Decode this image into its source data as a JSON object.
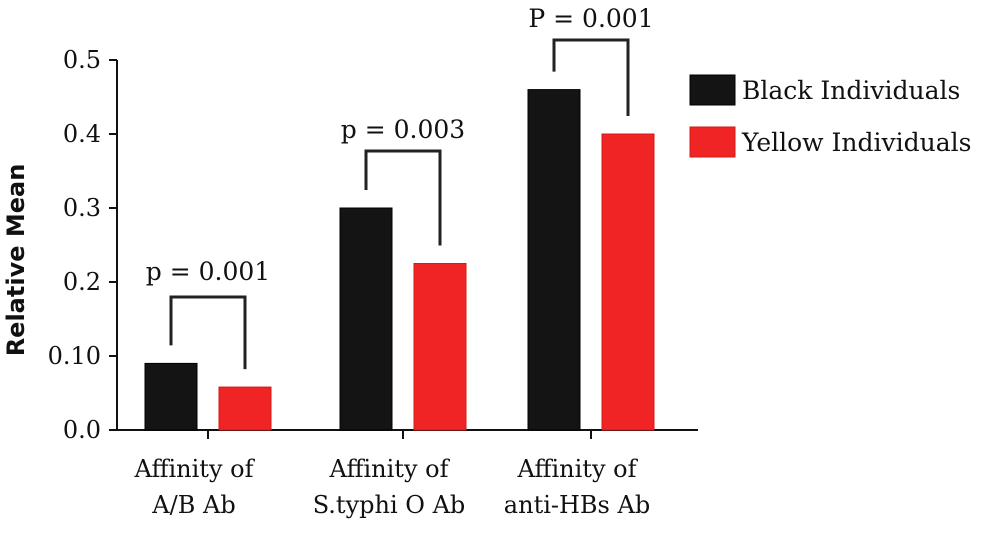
{
  "chart_data": {
    "type": "bar",
    "title": "",
    "xlabel": "",
    "ylabel": "Relative Mean",
    "ylim": [
      0,
      0.5
    ],
    "y_ticks": [
      "0.0",
      "0.10",
      "0.2",
      "0.3",
      "0.4",
      "0.5"
    ],
    "categories": [
      [
        "Affinity of",
        "A/B Ab"
      ],
      [
        "Affinity of",
        "S.typhi O Ab"
      ],
      [
        "Affinity of",
        "anti-HBs Ab"
      ]
    ],
    "series": [
      {
        "name": "Black Individuals",
        "color": "#141414",
        "values": [
          0.09,
          0.3,
          0.46
        ]
      },
      {
        "name": "Yellow Individuals",
        "color": "#f02424",
        "values": [
          0.058,
          0.225,
          0.4
        ]
      }
    ],
    "annotations": [
      "p = 0.001",
      "p = 0.003",
      "P = 0.001"
    ],
    "legend_position": "right",
    "grid": false
  }
}
